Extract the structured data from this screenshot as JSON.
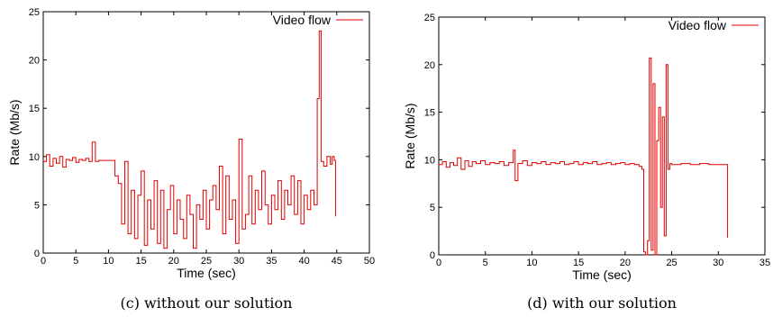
{
  "chart_data": [
    {
      "type": "line",
      "caption": "(c) without our solution",
      "xlabel": "Time (sec)",
      "ylabel": "Rate (Mb/s)",
      "xlim": [
        0,
        50
      ],
      "ylim": [
        0,
        25
      ],
      "xticks": [
        "0",
        "5",
        "10",
        "15",
        "20",
        "25",
        "30",
        "35",
        "40",
        "45",
        "50"
      ],
      "yticks": [
        "0",
        "5",
        "10",
        "15",
        "20",
        "25"
      ],
      "legend_position": "top-right",
      "grid": false,
      "series": [
        {
          "name": "Video flow",
          "color": "#e00000",
          "x": [
            0,
            0.5,
            1,
            1.5,
            2,
            2.5,
            3,
            3.5,
            4,
            4.5,
            5,
            5.5,
            6,
            6.5,
            7,
            7.5,
            8,
            8.5,
            9,
            9.5,
            10,
            10.5,
            11,
            11.5,
            12,
            12.5,
            13,
            13.5,
            14,
            14.5,
            15,
            15.5,
            16,
            16.5,
            17,
            17.5,
            18,
            18.5,
            19,
            19.5,
            20,
            20.5,
            21,
            21.5,
            22,
            22.5,
            23,
            23.5,
            24,
            24.5,
            25,
            25.5,
            26,
            26.5,
            27,
            27.5,
            28,
            28.5,
            29,
            29.5,
            30,
            30.5,
            31,
            31.5,
            32,
            32.5,
            33,
            33.5,
            34,
            34.5,
            35,
            35.5,
            36,
            36.5,
            37,
            37.5,
            38,
            38.5,
            39,
            39.5,
            40,
            40.5,
            41,
            41.5,
            42,
            42.3,
            42.6,
            43,
            43.5,
            44,
            44.3,
            44.6,
            44.8
          ],
          "values": [
            9.5,
            10.2,
            9.0,
            9.8,
            9.3,
            10.0,
            8.9,
            9.7,
            9.6,
            9.9,
            9.4,
            9.7,
            9.6,
            9.8,
            9.5,
            11.5,
            9.5,
            9.6,
            9.6,
            9.6,
            9.6,
            9.6,
            8.0,
            7.2,
            3.0,
            9.5,
            2.0,
            6.5,
            1.5,
            6.0,
            8.5,
            0.8,
            5.5,
            2.5,
            7.5,
            1.0,
            6.5,
            0.5,
            4.5,
            7.0,
            2.0,
            5.5,
            3.5,
            1.5,
            6.0,
            4.0,
            0.5,
            5.0,
            3.5,
            6.5,
            2.5,
            5.5,
            7.0,
            4.5,
            9.0,
            2.0,
            8.0,
            3.5,
            5.5,
            1.0,
            11.8,
            2.5,
            4.0,
            8.0,
            3.0,
            6.5,
            4.5,
            8.5,
            5.0,
            3.0,
            6.0,
            4.5,
            7.5,
            3.5,
            6.5,
            5.0,
            8.0,
            4.0,
            7.5,
            3.0,
            6.0,
            4.5,
            6.5,
            5.0,
            16.0,
            23.0,
            9.5,
            9.0,
            10.0,
            9.2,
            10.0,
            9.6,
            3.8
          ]
        }
      ]
    },
    {
      "type": "line",
      "caption": "(d) with our solution",
      "xlabel": "Time (sec)",
      "ylabel": "Rate (Mb/s)",
      "xlim": [
        0,
        35
      ],
      "ylim": [
        0,
        25
      ],
      "xticks": [
        "0",
        "5",
        "10",
        "15",
        "20",
        "25",
        "30",
        "35"
      ],
      "yticks": [
        "0",
        "5",
        "10",
        "15",
        "20",
        "25"
      ],
      "legend_position": "top-right",
      "grid": false,
      "series": [
        {
          "name": "Video flow",
          "color": "#e00000",
          "x": [
            0,
            0.4,
            0.8,
            1.2,
            1.6,
            2,
            2.4,
            2.8,
            3.2,
            3.6,
            4,
            4.5,
            5,
            5.5,
            6,
            6.5,
            7,
            7.5,
            8,
            8.2,
            8.5,
            9,
            9.5,
            10,
            10.5,
            11,
            11.5,
            12,
            12.5,
            13,
            13.5,
            14,
            14.5,
            15,
            15.5,
            16,
            16.5,
            17,
            17.5,
            18,
            18.5,
            19,
            19.5,
            20,
            20.5,
            21,
            21.5,
            21.8,
            22,
            22.2,
            22.4,
            22.6,
            22.8,
            23,
            23.2,
            23.4,
            23.6,
            23.8,
            24,
            24.2,
            24.4,
            24.6,
            24.8,
            25,
            26,
            27,
            28,
            29,
            30,
            30.5,
            30.8,
            31
          ],
          "values": [
            9.5,
            9.8,
            9.2,
            9.7,
            9.4,
            10.2,
            9.0,
            9.9,
            9.3,
            9.8,
            9.6,
            9.9,
            9.5,
            9.7,
            9.6,
            9.8,
            9.4,
            9.7,
            11.0,
            7.8,
            9.6,
            9.9,
            9.4,
            9.7,
            9.6,
            9.8,
            9.5,
            9.7,
            9.6,
            9.8,
            9.5,
            9.6,
            9.8,
            9.5,
            9.7,
            9.6,
            9.8,
            9.5,
            9.6,
            9.7,
            9.5,
            9.6,
            9.7,
            9.5,
            9.6,
            9.5,
            9.3,
            9.0,
            0.3,
            0.0,
            1.5,
            20.7,
            0.5,
            18.0,
            0.0,
            12.0,
            15.5,
            5.0,
            14.5,
            2.0,
            20.0,
            9.0,
            9.6,
            9.5,
            9.6,
            9.5,
            9.6,
            9.5,
            9.5,
            9.5,
            9.5,
            1.8
          ]
        }
      ]
    }
  ]
}
